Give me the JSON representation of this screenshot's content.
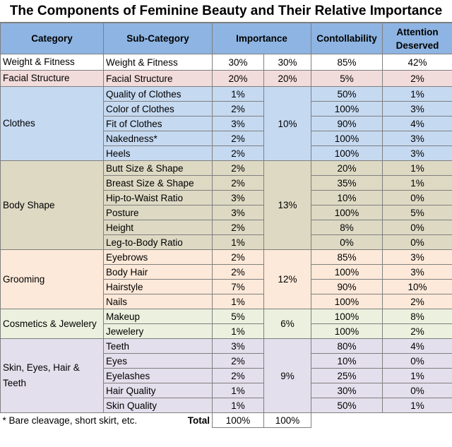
{
  "title": "The Components of Feminine Beauty and Their Relative Importance",
  "headers": {
    "category": "Category",
    "subcategory": "Sub-Category",
    "importance": "Importance",
    "controllability": "Contollability",
    "attention_line1": "Attention",
    "attention_line2": "Deserved"
  },
  "groups": [
    {
      "category": "Weight & Fitness",
      "group_importance": "30%",
      "color": "#ffffff",
      "rows": [
        [
          "Weight & Fitness",
          "30%",
          "85%",
          "42%"
        ]
      ]
    },
    {
      "category": "Facial Structure",
      "group_importance": "20%",
      "color": "#f2dcdb",
      "rows": [
        [
          "Facial Structure",
          "20%",
          "5%",
          "2%"
        ]
      ]
    },
    {
      "category": "Clothes",
      "group_importance": "10%",
      "color": "#c5d9f1",
      "rows": [
        [
          "Quality of Clothes",
          "1%",
          "50%",
          "1%"
        ],
        [
          "Color of Clothes",
          "2%",
          "100%",
          "3%"
        ],
        [
          "Fit of Clothes",
          "3%",
          "90%",
          "4%"
        ],
        [
          "Nakedness*",
          "2%",
          "100%",
          "3%"
        ],
        [
          "Heels",
          "2%",
          "100%",
          "3%"
        ]
      ]
    },
    {
      "category": "Body Shape",
      "group_importance": "13%",
      "color": "#ddd9c3",
      "rows": [
        [
          "Butt Size & Shape",
          "2%",
          "20%",
          "1%"
        ],
        [
          "Breast Size & Shape",
          "2%",
          "35%",
          "1%"
        ],
        [
          "Hip-to-Waist Ratio",
          "3%",
          "10%",
          "0%"
        ],
        [
          "Posture",
          "3%",
          "100%",
          "5%"
        ],
        [
          "Height",
          "2%",
          "8%",
          "0%"
        ],
        [
          "Leg-to-Body Ratio",
          "1%",
          "0%",
          "0%"
        ]
      ]
    },
    {
      "category": "Grooming",
      "group_importance": "12%",
      "color": "#fde9d9",
      "rows": [
        [
          "Eyebrows",
          "2%",
          "85%",
          "3%"
        ],
        [
          "Body Hair",
          "2%",
          "100%",
          "3%"
        ],
        [
          "Hairstyle",
          "7%",
          "90%",
          "10%"
        ],
        [
          "Nails",
          "1%",
          "100%",
          "2%"
        ]
      ]
    },
    {
      "category": "Cosmetics & Jewelery",
      "group_importance": "6%",
      "color": "#ebf1de",
      "rows": [
        [
          "Makeup",
          "5%",
          "100%",
          "8%"
        ],
        [
          "Jewelery",
          "1%",
          "100%",
          "2%"
        ]
      ]
    },
    {
      "category": "Skin, Eyes, Hair & Teeth",
      "group_importance": "9%",
      "color": "#e4dfec",
      "rows": [
        [
          "Teeth",
          "3%",
          "80%",
          "4%"
        ],
        [
          "Eyes",
          "2%",
          "10%",
          "0%"
        ],
        [
          "Eyelashes",
          "2%",
          "25%",
          "1%"
        ],
        [
          "Hair Quality",
          "1%",
          "30%",
          "0%"
        ],
        [
          "Skin Quality",
          "1%",
          "50%",
          "1%"
        ]
      ]
    }
  ],
  "footer": {
    "note": "* Bare cleavage, short skirt, etc.",
    "total_label": "Total",
    "total_sub": "100%",
    "total_group": "100%"
  }
}
